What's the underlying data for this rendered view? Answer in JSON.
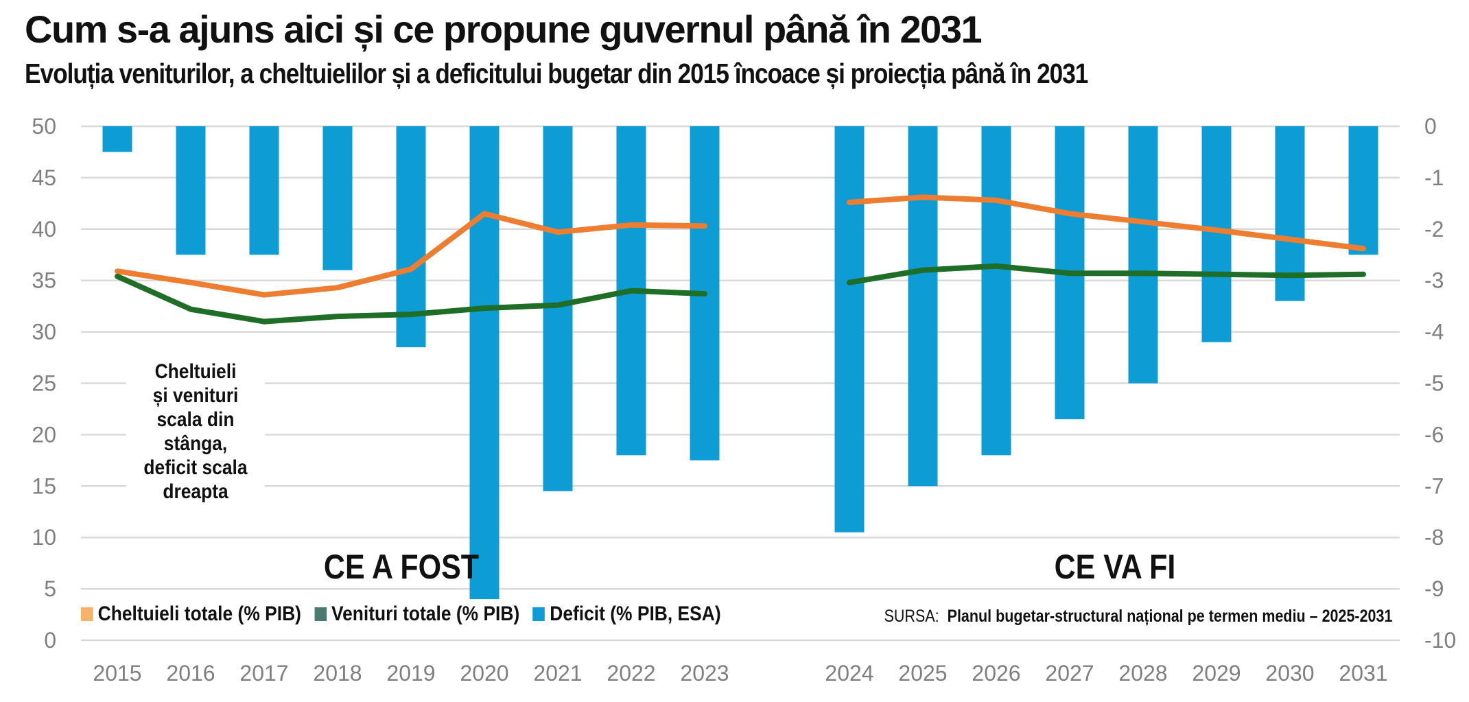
{
  "header": {
    "title": "Cum s-a ajuns aici și ce propune guvernul până în 2031",
    "subtitle": "Evoluția veniturilor, a cheltuielilor și a deficitului bugetar din 2015 încoace și proiecția până în 2031"
  },
  "note": {
    "lines": [
      "Cheltuieli",
      "și venituri",
      "scala din stânga,",
      "deficit scala",
      "dreapta"
    ]
  },
  "sections": {
    "past": "CE A FOST",
    "future": "CE VA FI"
  },
  "source": {
    "label": "SURSA:",
    "text": "Planul bugetar-structural național pe termen mediu – 2025-2031"
  },
  "chart_data": {
    "type": "bar",
    "title": "Cum s-a ajuns aici și ce propune guvernul până în 2031",
    "subtitle": "Evoluția veniturilor, a cheltuielilor și a deficitului bugetar din 2015 încoace și proiecția până în 2031",
    "categories": [
      "2015",
      "2016",
      "2017",
      "2018",
      "2019",
      "2020",
      "2021",
      "2022",
      "2023",
      "2024",
      "2025",
      "2026",
      "2027",
      "2028",
      "2029",
      "2030",
      "2031"
    ],
    "y_left": {
      "min": 0,
      "max": 50,
      "ticks": [
        0,
        5,
        10,
        15,
        20,
        25,
        30,
        35,
        40,
        45,
        50
      ]
    },
    "y_right": {
      "min": -10,
      "max": 0,
      "ticks": [
        0,
        -1,
        -2,
        -3,
        -4,
        -5,
        -6,
        -7,
        -8,
        -9,
        -10
      ]
    },
    "grid": true,
    "legend_position": "bottom-left",
    "series": [
      {
        "name": "Cheltuieli totale (% PIB)",
        "type": "line",
        "axis": "left",
        "color": "#ED7D31",
        "values": [
          35.9,
          34.8,
          33.6,
          34.3,
          36.1,
          41.5,
          39.7,
          40.4,
          40.3,
          42.6,
          43.1,
          42.8,
          41.5,
          40.7,
          39.9,
          39.0,
          38.1
        ]
      },
      {
        "name": "Venituri totale (% PIB)",
        "type": "line",
        "axis": "left",
        "color": "#1E6E28",
        "values": [
          35.4,
          32.2,
          31.0,
          31.5,
          31.7,
          32.3,
          32.6,
          34.0,
          33.7,
          34.8,
          36.0,
          36.4,
          35.7,
          35.7,
          35.6,
          35.5,
          35.6
        ]
      },
      {
        "name": "Deficit (% PIB, ESA)",
        "type": "bar",
        "axis": "right",
        "color": "#0E9CD5",
        "values": [
          -0.5,
          -2.5,
          -2.5,
          -2.8,
          -4.3,
          -9.2,
          -7.1,
          -6.4,
          -6.5,
          -7.9,
          -7.0,
          -6.4,
          -5.7,
          -5.0,
          -4.2,
          -3.4,
          -2.5
        ]
      }
    ],
    "legend_swatch_colors": [
      "#F6B26B",
      "#4A7A72",
      "#0E9CD5"
    ]
  }
}
